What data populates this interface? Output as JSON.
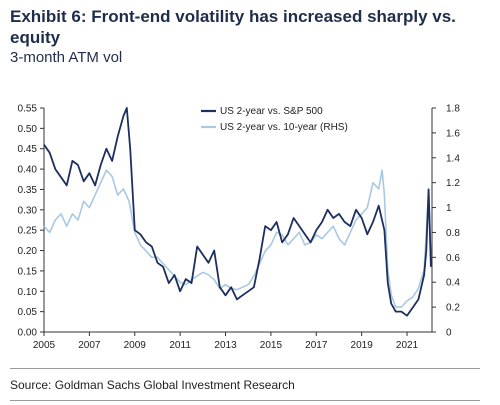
{
  "header": {
    "title": "Exhibit 6: Front-end volatility has increased sharply vs. equity",
    "subtitle": "3-month ATM vol"
  },
  "footer": {
    "source": "Source: Goldman Sachs Global Investment Research"
  },
  "colors": {
    "series_lhs": "#1c2f5e",
    "series_rhs": "#a9c8e2",
    "axis": "#333333"
  },
  "chart_data": {
    "type": "line",
    "title": "3-month ATM vol",
    "x_range": [
      2005,
      2022.1
    ],
    "x_ticks": [
      "2005",
      "2007",
      "2009",
      "2011",
      "2013",
      "2015",
      "2017",
      "2019",
      "2021"
    ],
    "x_tick_values": [
      2005,
      2007,
      2009,
      2011,
      2013,
      2015,
      2017,
      2019,
      2021
    ],
    "y_left": {
      "range": [
        0,
        0.55
      ],
      "ticks": [
        "0.00",
        "0.05",
        "0.10",
        "0.15",
        "0.20",
        "0.25",
        "0.30",
        "0.35",
        "0.40",
        "0.45",
        "0.50",
        "0.55"
      ]
    },
    "y_right": {
      "range": [
        0,
        1.8
      ],
      "ticks": [
        "0",
        "0.2",
        "0.4",
        "0.6",
        "0.8",
        "1",
        "1.2",
        "1.4",
        "1.6",
        "1.8"
      ]
    },
    "grid": false,
    "legend_position": "top-center",
    "series": [
      {
        "name": "US 2-year vs. S&P 500",
        "axis": "left",
        "x": [
          2005.0,
          2005.25,
          2005.5,
          2005.75,
          2006.0,
          2006.25,
          2006.5,
          2006.75,
          2007.0,
          2007.25,
          2007.5,
          2007.75,
          2008.0,
          2008.25,
          2008.5,
          2008.65,
          2008.8,
          2009.0,
          2009.25,
          2009.5,
          2009.75,
          2010.0,
          2010.25,
          2010.5,
          2010.75,
          2011.0,
          2011.25,
          2011.5,
          2011.75,
          2012.0,
          2012.25,
          2012.5,
          2012.75,
          2013.0,
          2013.25,
          2013.5,
          2013.75,
          2014.0,
          2014.25,
          2014.5,
          2014.75,
          2015.0,
          2015.25,
          2015.5,
          2015.75,
          2016.0,
          2016.25,
          2016.5,
          2016.75,
          2017.0,
          2017.25,
          2017.5,
          2017.75,
          2018.0,
          2018.25,
          2018.5,
          2018.75,
          2019.0,
          2019.25,
          2019.5,
          2019.75,
          2020.0,
          2020.15,
          2020.3,
          2020.5,
          2020.75,
          2021.0,
          2021.25,
          2021.5,
          2021.75,
          2021.85,
          2021.95,
          2022.05
        ],
        "y": [
          0.46,
          0.44,
          0.4,
          0.38,
          0.36,
          0.42,
          0.41,
          0.37,
          0.39,
          0.36,
          0.41,
          0.45,
          0.42,
          0.48,
          0.53,
          0.55,
          0.45,
          0.25,
          0.24,
          0.22,
          0.21,
          0.17,
          0.16,
          0.12,
          0.14,
          0.1,
          0.13,
          0.12,
          0.21,
          0.19,
          0.17,
          0.2,
          0.11,
          0.09,
          0.11,
          0.08,
          0.09,
          0.1,
          0.11,
          0.18,
          0.26,
          0.25,
          0.27,
          0.22,
          0.24,
          0.28,
          0.26,
          0.24,
          0.22,
          0.25,
          0.27,
          0.3,
          0.28,
          0.29,
          0.27,
          0.26,
          0.3,
          0.28,
          0.24,
          0.27,
          0.31,
          0.25,
          0.12,
          0.07,
          0.05,
          0.05,
          0.04,
          0.06,
          0.08,
          0.14,
          0.2,
          0.35,
          0.16
        ]
      },
      {
        "name": "US 2-year vs. 10-year (RHS)",
        "axis": "right",
        "x": [
          2005.0,
          2005.25,
          2005.5,
          2005.75,
          2006.0,
          2006.25,
          2006.5,
          2006.75,
          2007.0,
          2007.25,
          2007.5,
          2007.75,
          2008.0,
          2008.25,
          2008.5,
          2008.75,
          2009.0,
          2009.25,
          2009.5,
          2009.75,
          2010.0,
          2010.25,
          2010.5,
          2010.75,
          2011.0,
          2011.25,
          2011.5,
          2011.75,
          2012.0,
          2012.25,
          2012.5,
          2012.75,
          2013.0,
          2013.25,
          2013.5,
          2013.75,
          2014.0,
          2014.25,
          2014.5,
          2014.75,
          2015.0,
          2015.25,
          2015.5,
          2015.75,
          2016.0,
          2016.25,
          2016.5,
          2016.75,
          2017.0,
          2017.25,
          2017.5,
          2017.75,
          2018.0,
          2018.25,
          2018.5,
          2018.75,
          2019.0,
          2019.25,
          2019.5,
          2019.75,
          2019.9,
          2020.0,
          2020.15,
          2020.3,
          2020.5,
          2020.75,
          2021.0,
          2021.25,
          2021.5,
          2021.75,
          2021.85,
          2021.95,
          2022.05
        ],
        "y": [
          0.85,
          0.8,
          0.9,
          0.95,
          0.85,
          0.95,
          0.9,
          1.05,
          1.0,
          1.1,
          1.2,
          1.3,
          1.25,
          1.1,
          1.15,
          1.05,
          0.8,
          0.7,
          0.65,
          0.6,
          0.6,
          0.55,
          0.5,
          0.45,
          0.4,
          0.38,
          0.42,
          0.45,
          0.48,
          0.46,
          0.42,
          0.35,
          0.38,
          0.35,
          0.34,
          0.36,
          0.38,
          0.45,
          0.55,
          0.65,
          0.7,
          0.8,
          0.78,
          0.7,
          0.75,
          0.8,
          0.7,
          0.72,
          0.78,
          0.75,
          0.8,
          0.85,
          0.75,
          0.7,
          0.8,
          0.9,
          0.95,
          1.0,
          1.2,
          1.15,
          1.3,
          1.1,
          0.5,
          0.3,
          0.2,
          0.2,
          0.25,
          0.28,
          0.35,
          0.5,
          0.8,
          1.15,
          0.6
        ]
      }
    ]
  }
}
